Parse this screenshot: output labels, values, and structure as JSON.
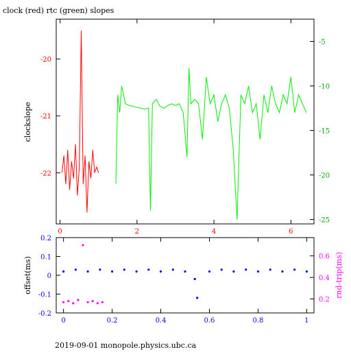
{
  "page_title": "clock (red) rtc (green) slopes",
  "footer_text": "2019-09-01 monopole.physics.ubc.ca",
  "colors": {
    "clock": "#ff0000",
    "rtc": "#00ee00",
    "offset": "#0000ff",
    "rnd_trip": "#ff00ff",
    "axis": "#000000"
  },
  "chart_data": [
    {
      "type": "line",
      "title": "clock (red) rtc (green) slopes",
      "xlabel": "",
      "ylabel": "clockslope",
      "y2label": "",
      "xlim": [
        -0.1,
        6.6
      ],
      "ylim": [
        -22.9,
        -19.3
      ],
      "y2lim": [
        -25.5,
        -2.5
      ],
      "x_ticks": [
        0,
        2,
        4,
        6
      ],
      "y_ticks": [
        -22,
        -21,
        -20
      ],
      "y2_ticks": [
        -25,
        -20,
        -15,
        -10,
        -5
      ],
      "grid": false,
      "series": [
        {
          "name": "clock",
          "axis": "left",
          "points": [
            [
              0.05,
              -22.0
            ],
            [
              0.1,
              -21.7
            ],
            [
              0.15,
              -22.2
            ],
            [
              0.2,
              -21.6
            ],
            [
              0.25,
              -22.3
            ],
            [
              0.3,
              -21.8
            ],
            [
              0.35,
              -22.1
            ],
            [
              0.4,
              -21.5
            ],
            [
              0.45,
              -22.4
            ],
            [
              0.5,
              -21.9
            ],
            [
              0.55,
              -19.5
            ],
            [
              0.6,
              -22.2
            ],
            [
              0.65,
              -21.7
            ],
            [
              0.7,
              -22.7
            ],
            [
              0.75,
              -21.8
            ],
            [
              0.8,
              -22.1
            ],
            [
              0.85,
              -21.6
            ],
            [
              0.9,
              -22.0
            ],
            [
              0.95,
              -21.9
            ],
            [
              1.0,
              -22.0
            ]
          ]
        },
        {
          "name": "rtc",
          "axis": "right",
          "points": [
            [
              1.45,
              -21
            ],
            [
              1.5,
              -11
            ],
            [
              1.55,
              -13
            ],
            [
              1.6,
              -10
            ],
            [
              1.7,
              -12
            ],
            [
              1.8,
              -12.2
            ],
            [
              1.9,
              -12.3
            ],
            [
              2.0,
              -12.4
            ],
            [
              2.1,
              -12.5
            ],
            [
              2.2,
              -12.6
            ],
            [
              2.3,
              -12.5
            ],
            [
              2.35,
              -24
            ],
            [
              2.4,
              -12
            ],
            [
              2.5,
              -11.5
            ],
            [
              2.6,
              -12.3
            ],
            [
              2.7,
              -12.5
            ],
            [
              2.8,
              -12.2
            ],
            [
              2.9,
              -12.0
            ],
            [
              3.0,
              -12.2
            ],
            [
              3.1,
              -12.0
            ],
            [
              3.2,
              -13
            ],
            [
              3.3,
              -18
            ],
            [
              3.35,
              -8
            ],
            [
              3.4,
              -12
            ],
            [
              3.5,
              -11.5
            ],
            [
              3.6,
              -12
            ],
            [
              3.7,
              -16
            ],
            [
              3.8,
              -9
            ],
            [
              3.9,
              -12
            ],
            [
              4.0,
              -11
            ],
            [
              4.1,
              -14
            ],
            [
              4.2,
              -12
            ],
            [
              4.3,
              -11
            ],
            [
              4.4,
              -12.5
            ],
            [
              4.5,
              -17
            ],
            [
              4.6,
              -25
            ],
            [
              4.7,
              -11
            ],
            [
              4.8,
              -12
            ],
            [
              4.9,
              -10
            ],
            [
              5.0,
              -13
            ],
            [
              5.1,
              -12
            ],
            [
              5.2,
              -16
            ],
            [
              5.3,
              -11
            ],
            [
              5.4,
              -13
            ],
            [
              5.5,
              -10
            ],
            [
              5.6,
              -12
            ],
            [
              5.7,
              -13
            ],
            [
              5.8,
              -11
            ],
            [
              5.9,
              -12
            ],
            [
              6.0,
              -9
            ],
            [
              6.1,
              -13
            ],
            [
              6.2,
              -11
            ],
            [
              6.3,
              -12
            ],
            [
              6.4,
              -13
            ]
          ]
        }
      ]
    },
    {
      "type": "scatter",
      "title": "",
      "xlabel": "",
      "ylabel": "offset(ms)",
      "y2label": "rnd-trip(ms)",
      "xlim": [
        -0.03,
        1.03
      ],
      "ylim": [
        -0.2,
        0.2
      ],
      "y2lim": [
        0.07,
        0.77
      ],
      "x_ticks": [
        0,
        0.2,
        0.4,
        0.6,
        0.8,
        1
      ],
      "y_ticks": [
        -0.2,
        -0.1,
        0,
        0.1,
        0.2
      ],
      "y2_ticks": [
        0.2,
        0.4,
        0.6
      ],
      "grid": false,
      "series": [
        {
          "name": "offset",
          "axis": "left",
          "points": [
            [
              0.0,
              0.02
            ],
            [
              0.05,
              0.03
            ],
            [
              0.1,
              0.02
            ],
            [
              0.15,
              0.03
            ],
            [
              0.2,
              0.02
            ],
            [
              0.25,
              0.03
            ],
            [
              0.3,
              0.02
            ],
            [
              0.35,
              0.03
            ],
            [
              0.4,
              0.02
            ],
            [
              0.45,
              0.03
            ],
            [
              0.5,
              0.02
            ],
            [
              0.54,
              -0.02
            ],
            [
              0.55,
              -0.12
            ],
            [
              0.6,
              0.02
            ],
            [
              0.65,
              0.03
            ],
            [
              0.7,
              0.02
            ],
            [
              0.75,
              0.03
            ],
            [
              0.8,
              0.02
            ],
            [
              0.85,
              0.03
            ],
            [
              0.9,
              0.02
            ],
            [
              0.95,
              0.03
            ],
            [
              1.0,
              0.02
            ]
          ]
        },
        {
          "name": "rnd_trip",
          "axis": "right",
          "points": [
            [
              0.0,
              0.17
            ],
            [
              0.02,
              0.18
            ],
            [
              0.04,
              0.16
            ],
            [
              0.06,
              0.19
            ],
            [
              0.08,
              0.7
            ],
            [
              0.1,
              0.17
            ],
            [
              0.12,
              0.18
            ],
            [
              0.14,
              0.16
            ],
            [
              0.16,
              0.17
            ]
          ]
        }
      ]
    }
  ]
}
